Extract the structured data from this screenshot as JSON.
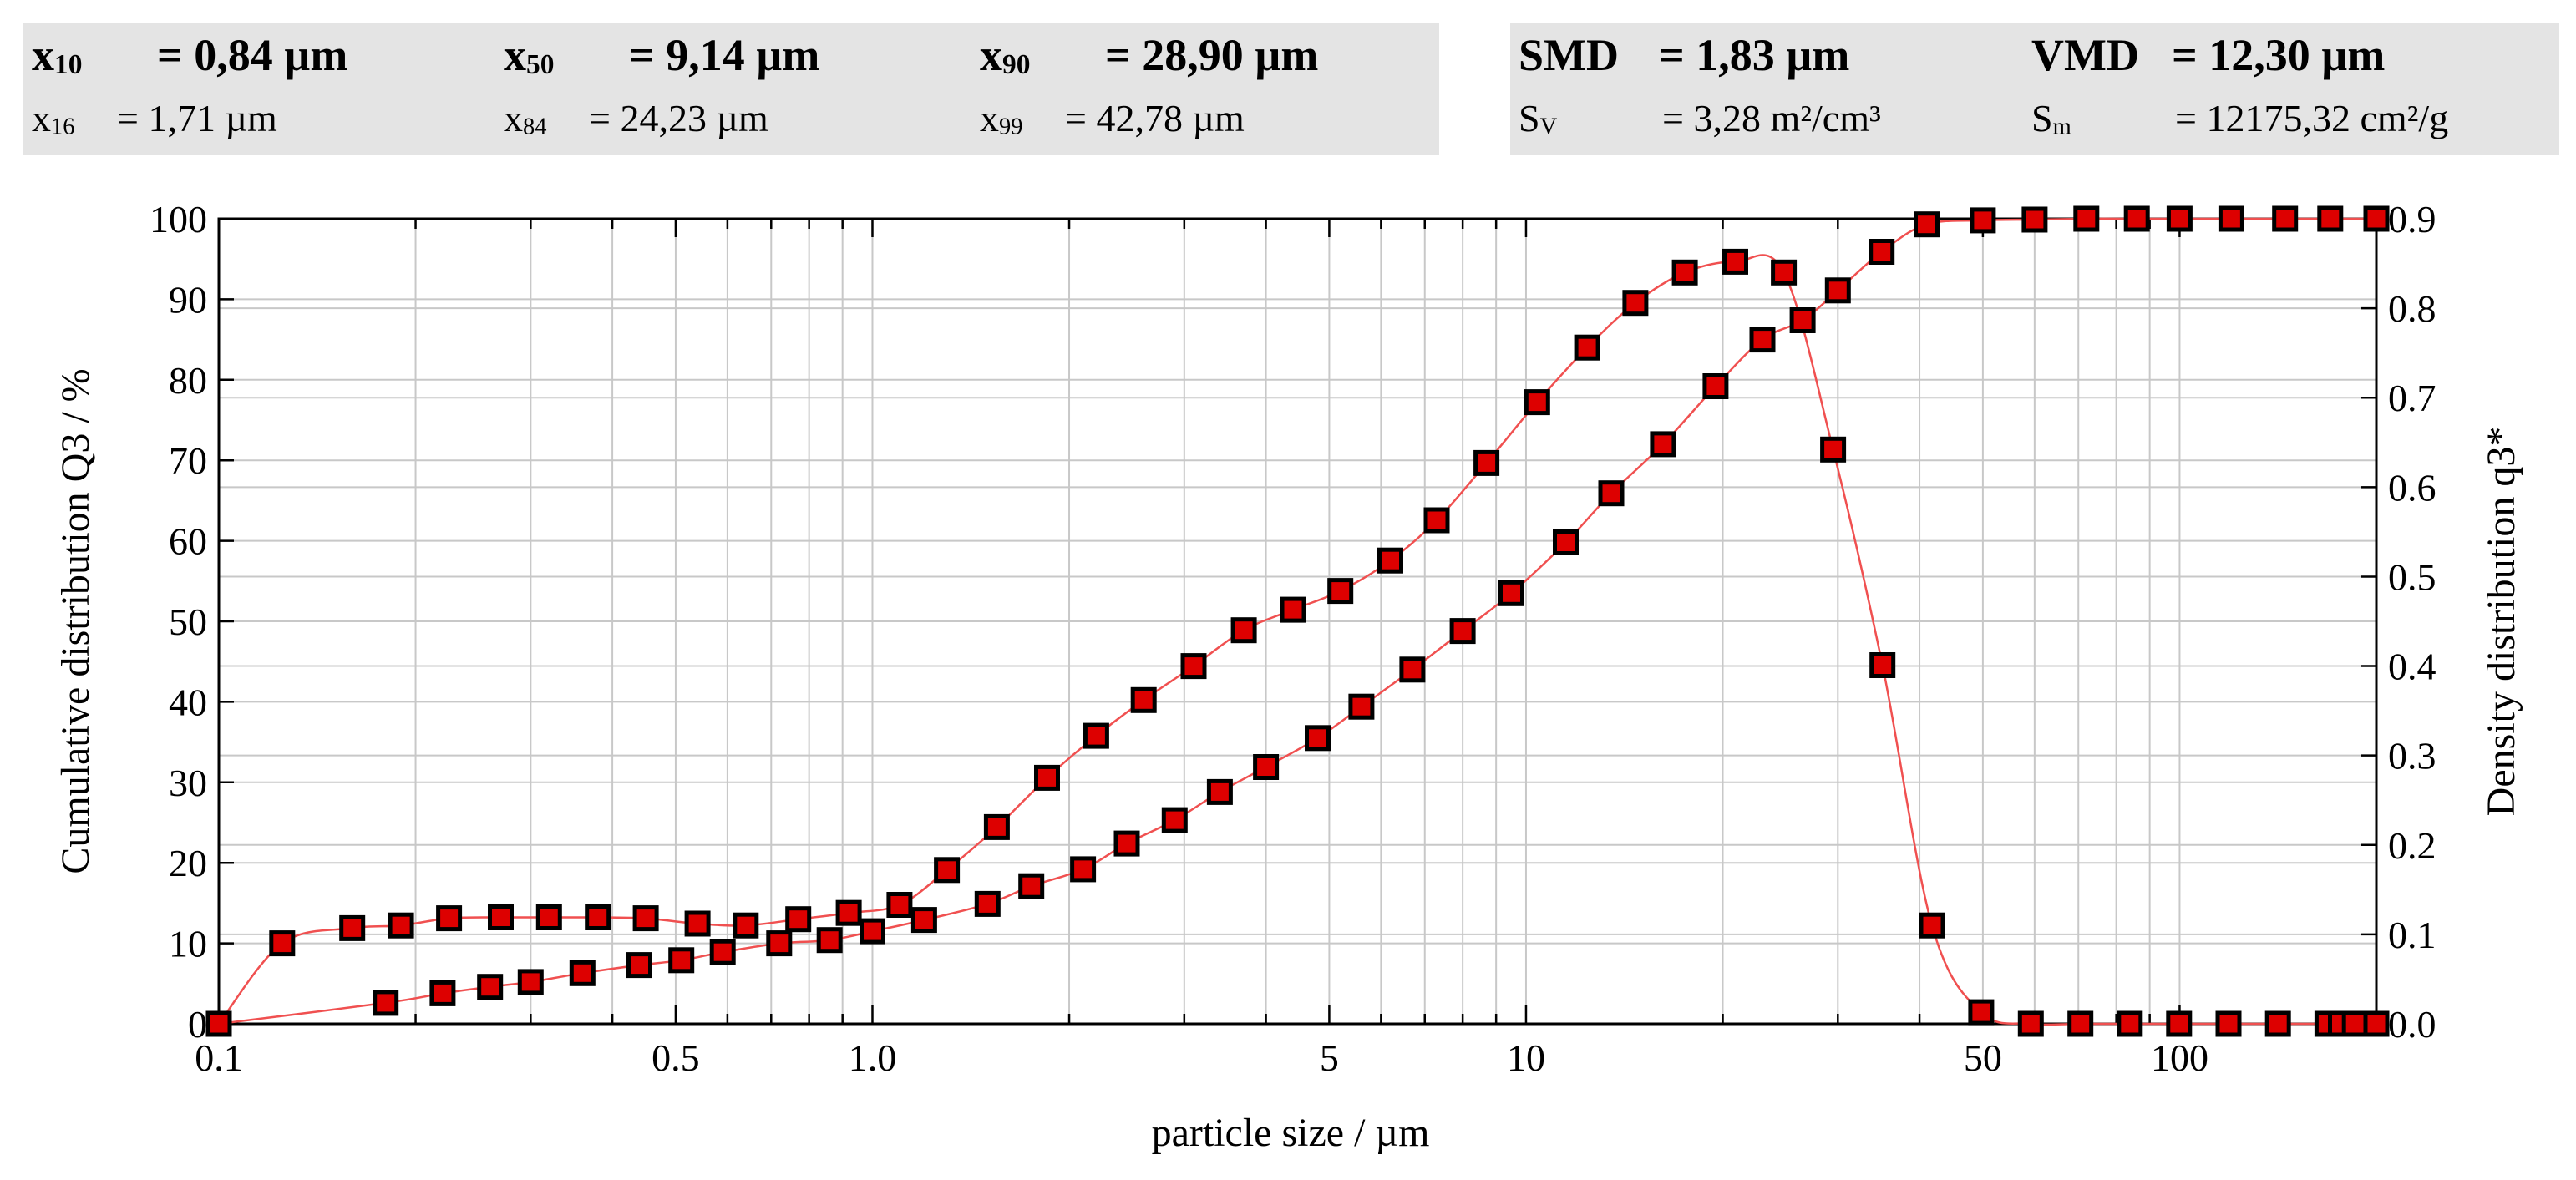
{
  "stats_left": [
    {
      "name": "x10",
      "sym": "x",
      "sub": "10",
      "value": "= 0,84 µm",
      "weight": "bold"
    },
    {
      "name": "x50",
      "sym": "x",
      "sub": "50",
      "value": "= 9,14 µm",
      "weight": "bold"
    },
    {
      "name": "x90",
      "sym": "x",
      "sub": "90",
      "value": "= 28,90 µm",
      "weight": "bold"
    },
    {
      "name": "x16",
      "sym": "x",
      "sub": "16",
      "value": "= 1,71 µm",
      "weight": "normal"
    },
    {
      "name": "x84",
      "sym": "x",
      "sub": "84",
      "value": "= 24,23 µm",
      "weight": "normal"
    },
    {
      "name": "x99",
      "sym": "x",
      "sub": "99",
      "value": "= 42,78 µm",
      "weight": "normal"
    }
  ],
  "stats_right": [
    {
      "name": "smd",
      "sym": "SMD",
      "sub": "",
      "value": "= 1,83 µm",
      "weight": "bold"
    },
    {
      "name": "vmd",
      "sym": "VMD",
      "sub": "",
      "value": "= 12,30 µm",
      "weight": "bold"
    },
    {
      "name": "sv",
      "sym": "S",
      "sub": "V",
      "value": "= 3,28 m²/cm³",
      "weight": "normal"
    },
    {
      "name": "sm",
      "sym": "S",
      "sub": "m",
      "value": "= 12175,32 cm²/g",
      "weight": "normal"
    }
  ],
  "chart_data": {
    "type": "scatter",
    "xlabel": "particle size / µm",
    "ylabel": "Cumulative distribution Q3 / %",
    "y2label": "Density distribution q3*",
    "xscale": "log",
    "xlim": [
      0.1,
      200
    ],
    "ylim": [
      0,
      100
    ],
    "y2lim": [
      0,
      0.9
    ],
    "x_ticks": [
      {
        "v": 0.1,
        "label": "0.1"
      },
      {
        "v": 0.5,
        "label": "0.5"
      },
      {
        "v": 1,
        "label": "1.0"
      },
      {
        "v": 5,
        "label": "5"
      },
      {
        "v": 10,
        "label": "10"
      },
      {
        "v": 50,
        "label": "50"
      },
      {
        "v": 100,
        "label": "100"
      }
    ],
    "y_ticks": [
      {
        "v": 0,
        "label": "0"
      },
      {
        "v": 10,
        "label": "10"
      },
      {
        "v": 20,
        "label": "20"
      },
      {
        "v": 30,
        "label": "30"
      },
      {
        "v": 40,
        "label": "40"
      },
      {
        "v": 50,
        "label": "50"
      },
      {
        "v": 60,
        "label": "60"
      },
      {
        "v": 70,
        "label": "70"
      },
      {
        "v": 80,
        "label": "80"
      },
      {
        "v": 90,
        "label": "90"
      },
      {
        "v": 100,
        "label": "100"
      }
    ],
    "y2_ticks": [
      {
        "v": 0,
        "label": "0.0"
      },
      {
        "v": 0.1,
        "label": "0.1"
      },
      {
        "v": 0.2,
        "label": "0.2"
      },
      {
        "v": 0.3,
        "label": "0.3"
      },
      {
        "v": 0.4,
        "label": "0.4"
      },
      {
        "v": 0.5,
        "label": "0.5"
      },
      {
        "v": 0.6,
        "label": "0.6"
      },
      {
        "v": 0.7,
        "label": "0.7"
      },
      {
        "v": 0.8,
        "label": "0.8"
      },
      {
        "v": 0.9,
        "label": "0.9"
      }
    ],
    "grid": true,
    "line_color": "#f05050",
    "marker_color": "#dd0000",
    "series": [
      {
        "axis": "left",
        "x": [
          0.1,
          0.18,
          0.22,
          0.26,
          0.3,
          0.36,
          0.44,
          0.51,
          0.59,
          0.72,
          0.86,
          1.0,
          1.2,
          1.5,
          1.75,
          2.1,
          2.45,
          2.9,
          3.4,
          4.0,
          4.8,
          5.6,
          6.7,
          8.0,
          9.5,
          11.5,
          13.5,
          16.2,
          19.5,
          23,
          26.5,
          30,
          35,
          41,
          50,
          60,
          72,
          86,
          100,
          120,
          145,
          170,
          200
        ],
        "y": [
          0,
          2.6,
          3.8,
          4.6,
          5.2,
          6.3,
          7.3,
          7.9,
          8.9,
          10,
          10.4,
          11.5,
          12.9,
          14.9,
          17.1,
          19.2,
          22.4,
          25.3,
          28.8,
          31.9,
          35.5,
          39.4,
          44.0,
          48.8,
          53.5,
          59.8,
          65.9,
          72.0,
          79.2,
          85.0,
          87.4,
          91.1,
          95.9,
          99.3,
          99.8,
          99.9,
          100,
          100,
          100,
          100,
          100,
          100,
          100
        ]
      },
      {
        "axis": "right",
        "x": [
          0.1,
          0.125,
          0.16,
          0.19,
          0.225,
          0.27,
          0.32,
          0.38,
          0.45,
          0.54,
          0.64,
          0.77,
          0.92,
          1.1,
          1.3,
          1.55,
          1.85,
          2.2,
          2.6,
          3.1,
          3.7,
          4.4,
          5.2,
          6.2,
          7.3,
          8.7,
          10.4,
          12.4,
          14.7,
          17.5,
          20.9,
          24.8,
          29.5,
          35.1,
          41.8,
          49.7,
          59.2,
          70.5,
          83.9,
          99.8,
          118.8,
          141.4,
          168.3,
          176.5,
          185.4,
          200
        ],
        "y": [
          0.0,
          0.09,
          0.107,
          0.11,
          0.118,
          0.119,
          0.119,
          0.119,
          0.118,
          0.112,
          0.11,
          0.117,
          0.124,
          0.133,
          0.172,
          0.22,
          0.275,
          0.322,
          0.362,
          0.4,
          0.44,
          0.463,
          0.484,
          0.518,
          0.563,
          0.627,
          0.695,
          0.756,
          0.806,
          0.84,
          0.852,
          0.84,
          0.642,
          0.401,
          0.11,
          0.013,
          0.0,
          0.0,
          0.0,
          0.0,
          0.0,
          0.0,
          0.0,
          0.0,
          0.0,
          0.0
        ]
      }
    ]
  }
}
